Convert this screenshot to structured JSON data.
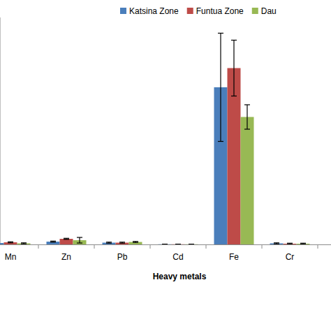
{
  "chart_data": {
    "type": "bar",
    "x_label": "Heavy metals",
    "categories": [
      "Mn",
      "Zn",
      "Pb",
      "Cd",
      "Fe",
      "Cr"
    ],
    "series": [
      {
        "name": "Katsina Zone",
        "color": "#4a7ebb",
        "values": [
          0.8,
          1.6,
          1.0,
          0.1,
          90,
          0.6
        ],
        "errors": [
          0.3,
          0.3,
          0.3,
          0.05,
          31,
          0.3
        ]
      },
      {
        "name": "Funtua Zone",
        "color": "#be4b48",
        "values": [
          1.2,
          3.2,
          1.0,
          0.1,
          101,
          0.4
        ],
        "errors": [
          0.3,
          0.3,
          0.3,
          0.05,
          16,
          0.3
        ]
      },
      {
        "name": "Dau",
        "color": "#98b954",
        "values": [
          0.6,
          2.4,
          1.4,
          0.1,
          73,
          0.4
        ],
        "errors": [
          0.3,
          1.6,
          0.3,
          0.05,
          7,
          0.3
        ]
      }
    ],
    "ylim": [
      0,
      130
    ],
    "tick_labels": "x",
    "legend": "top",
    "grid": false
  }
}
